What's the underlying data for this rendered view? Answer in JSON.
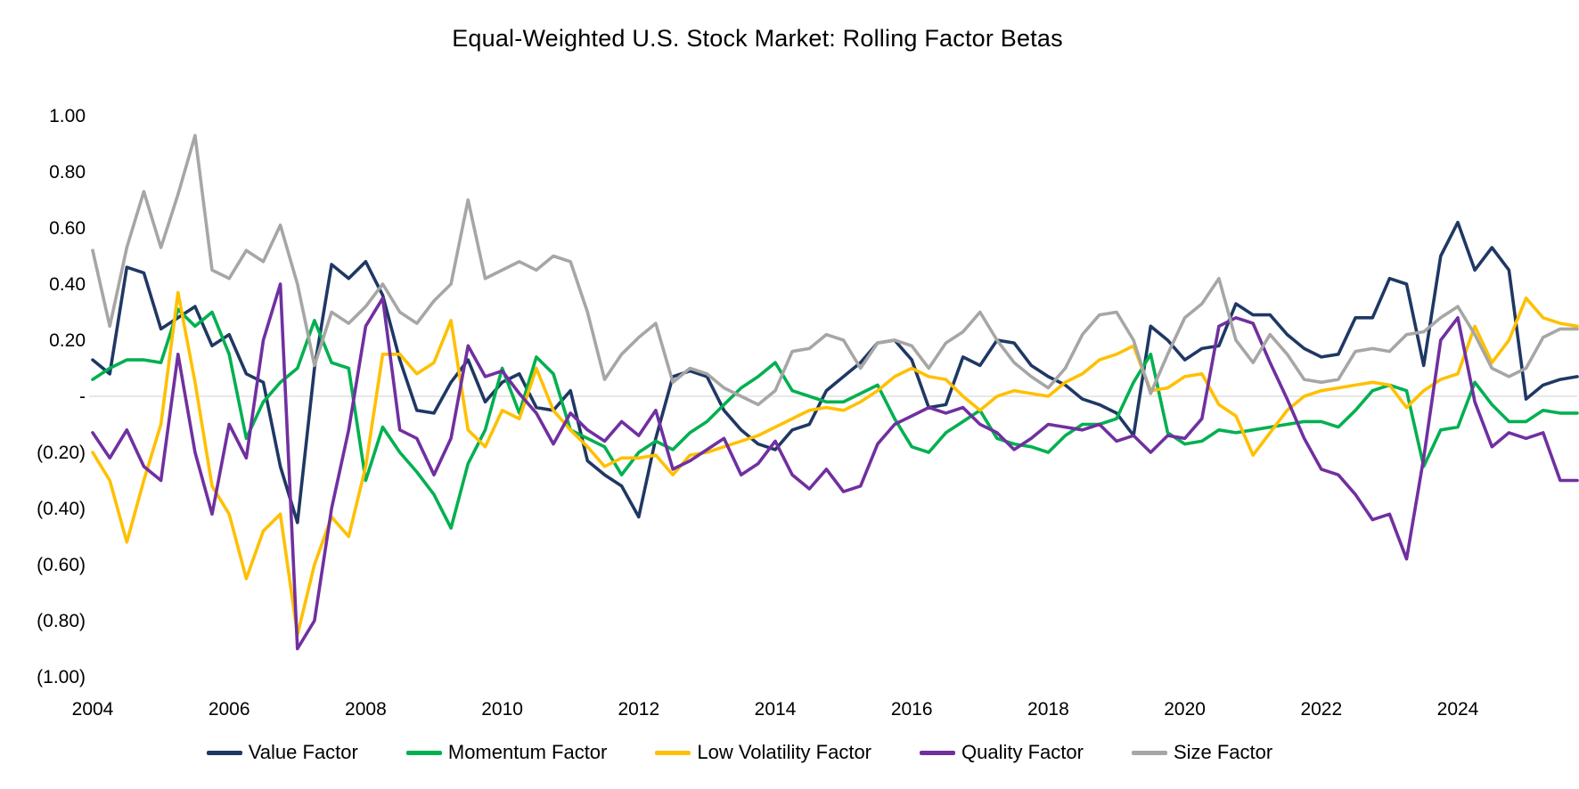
{
  "chart_data": {
    "type": "line",
    "title": "Equal-Weighted U.S. Stock Market: Rolling Factor Betas",
    "xlabel": "",
    "ylabel": "",
    "ylim": [
      -1.0,
      1.0
    ],
    "grid": "zero-line-only",
    "zero_line_color": "#D9D9D9",
    "legend_position": "bottom",
    "x_start": 2004,
    "x_step": 0.25,
    "x_ticks": [
      {
        "value": 2004,
        "label": "2004"
      },
      {
        "value": 2006,
        "label": "2006"
      },
      {
        "value": 2008,
        "label": "2008"
      },
      {
        "value": 2010,
        "label": "2010"
      },
      {
        "value": 2012,
        "label": "2012"
      },
      {
        "value": 2014,
        "label": "2014"
      },
      {
        "value": 2016,
        "label": "2016"
      },
      {
        "value": 2018,
        "label": "2018"
      },
      {
        "value": 2020,
        "label": "2020"
      },
      {
        "value": 2022,
        "label": "2022"
      },
      {
        "value": 2024,
        "label": "2024"
      }
    ],
    "y_ticks": [
      {
        "value": 1.0,
        "label": "1.00"
      },
      {
        "value": 0.8,
        "label": "0.80"
      },
      {
        "value": 0.6,
        "label": "0.60"
      },
      {
        "value": 0.4,
        "label": "0.40"
      },
      {
        "value": 0.2,
        "label": "0.20"
      },
      {
        "value": 0.0,
        "label": "-"
      },
      {
        "value": -0.2,
        "label": "(0.20)"
      },
      {
        "value": -0.4,
        "label": "(0.40)"
      },
      {
        "value": -0.6,
        "label": "(0.60)"
      },
      {
        "value": -0.8,
        "label": "(0.80)"
      },
      {
        "value": -1.0,
        "label": "(1.00)"
      }
    ],
    "series": [
      {
        "name": "Value Factor",
        "color": "#1F3864",
        "values": [
          0.13,
          0.08,
          0.46,
          0.44,
          0.24,
          0.28,
          0.32,
          0.18,
          0.22,
          0.08,
          0.05,
          -0.25,
          -0.45,
          0.1,
          0.47,
          0.42,
          0.48,
          0.36,
          0.13,
          -0.05,
          -0.06,
          0.05,
          0.13,
          -0.02,
          0.05,
          0.08,
          -0.04,
          -0.05,
          0.02,
          -0.23,
          -0.28,
          -0.32,
          -0.43,
          -0.15,
          0.07,
          0.09,
          0.07,
          -0.05,
          -0.12,
          -0.17,
          -0.19,
          -0.12,
          -0.1,
          0.02,
          0.07,
          0.12,
          0.19,
          0.2,
          0.13,
          -0.04,
          -0.03,
          0.14,
          0.11,
          0.2,
          0.19,
          0.11,
          0.07,
          0.04,
          -0.01,
          -0.03,
          -0.06,
          -0.14,
          0.25,
          0.2,
          0.13,
          0.17,
          0.18,
          0.33,
          0.29,
          0.29,
          0.22,
          0.17,
          0.14,
          0.15,
          0.28,
          0.28,
          0.42,
          0.4,
          0.11,
          0.5,
          0.62,
          0.45,
          0.53,
          0.45,
          -0.01,
          0.04,
          0.06,
          0.07
        ]
      },
      {
        "name": "Momentum Factor",
        "color": "#00B050",
        "values": [
          0.06,
          0.1,
          0.13,
          0.13,
          0.12,
          0.31,
          0.25,
          0.3,
          0.15,
          -0.15,
          -0.02,
          0.05,
          0.1,
          0.27,
          0.12,
          0.1,
          -0.3,
          -0.11,
          -0.2,
          -0.27,
          -0.35,
          -0.47,
          -0.24,
          -0.12,
          0.1,
          -0.06,
          0.14,
          0.08,
          -0.12,
          -0.15,
          -0.18,
          -0.28,
          -0.2,
          -0.16,
          -0.19,
          -0.13,
          -0.09,
          -0.03,
          0.03,
          0.07,
          0.12,
          0.02,
          0.0,
          -0.02,
          -0.02,
          0.01,
          0.04,
          -0.08,
          -0.18,
          -0.2,
          -0.13,
          -0.09,
          -0.05,
          -0.15,
          -0.17,
          -0.18,
          -0.2,
          -0.14,
          -0.1,
          -0.1,
          -0.08,
          0.05,
          0.15,
          -0.13,
          -0.17,
          -0.16,
          -0.12,
          -0.13,
          -0.12,
          -0.11,
          -0.1,
          -0.09,
          -0.09,
          -0.11,
          -0.05,
          0.02,
          0.04,
          0.02,
          -0.25,
          -0.12,
          -0.11,
          0.05,
          -0.03,
          -0.09,
          -0.09,
          -0.05,
          -0.06,
          -0.06
        ]
      },
      {
        "name": "Low Volatility Factor",
        "color": "#FFC000",
        "values": [
          -0.2,
          -0.3,
          -0.52,
          -0.3,
          -0.1,
          0.37,
          0.05,
          -0.32,
          -0.42,
          -0.65,
          -0.48,
          -0.42,
          -0.85,
          -0.6,
          -0.43,
          -0.5,
          -0.25,
          0.15,
          0.15,
          0.08,
          0.12,
          0.27,
          -0.12,
          -0.18,
          -0.05,
          -0.08,
          0.1,
          -0.05,
          -0.12,
          -0.18,
          -0.25,
          -0.22,
          -0.22,
          -0.21,
          -0.28,
          -0.21,
          -0.2,
          -0.18,
          -0.16,
          -0.14,
          -0.11,
          -0.08,
          -0.05,
          -0.04,
          -0.05,
          -0.02,
          0.02,
          0.07,
          0.1,
          0.07,
          0.06,
          0.0,
          -0.05,
          0.0,
          0.02,
          0.01,
          0.0,
          0.05,
          0.08,
          0.13,
          0.15,
          0.18,
          0.02,
          0.03,
          0.07,
          0.08,
          -0.03,
          -0.07,
          -0.21,
          -0.13,
          -0.05,
          0.0,
          0.02,
          0.03,
          0.04,
          0.05,
          0.04,
          -0.04,
          0.02,
          0.06,
          0.08,
          0.25,
          0.12,
          0.2,
          0.35,
          0.28,
          0.26,
          0.25
        ]
      },
      {
        "name": "Quality Factor",
        "color": "#7030A0",
        "values": [
          -0.13,
          -0.22,
          -0.12,
          -0.25,
          -0.3,
          0.15,
          -0.2,
          -0.42,
          -0.1,
          -0.22,
          0.2,
          0.4,
          -0.9,
          -0.8,
          -0.4,
          -0.12,
          0.25,
          0.35,
          -0.12,
          -0.15,
          -0.28,
          -0.15,
          0.18,
          0.07,
          0.09,
          0.01,
          -0.06,
          -0.17,
          -0.06,
          -0.12,
          -0.16,
          -0.09,
          -0.14,
          -0.05,
          -0.26,
          -0.23,
          -0.19,
          -0.15,
          -0.28,
          -0.24,
          -0.16,
          -0.28,
          -0.33,
          -0.26,
          -0.34,
          -0.32,
          -0.17,
          -0.1,
          -0.07,
          -0.04,
          -0.06,
          -0.04,
          -0.1,
          -0.13,
          -0.19,
          -0.15,
          -0.1,
          -0.11,
          -0.12,
          -0.1,
          -0.16,
          -0.14,
          -0.2,
          -0.14,
          -0.15,
          -0.08,
          0.25,
          0.28,
          0.26,
          0.12,
          -0.01,
          -0.15,
          -0.26,
          -0.28,
          -0.35,
          -0.44,
          -0.42,
          -0.58,
          -0.22,
          0.2,
          0.28,
          -0.02,
          -0.18,
          -0.13,
          -0.15,
          -0.13,
          -0.3,
          -0.3
        ]
      },
      {
        "name": "Size Factor",
        "color": "#A6A6A6",
        "values": [
          0.52,
          0.25,
          0.53,
          0.73,
          0.53,
          0.72,
          0.93,
          0.45,
          0.42,
          0.52,
          0.48,
          0.61,
          0.4,
          0.11,
          0.3,
          0.26,
          0.32,
          0.4,
          0.3,
          0.26,
          0.34,
          0.4,
          0.7,
          0.42,
          0.45,
          0.48,
          0.45,
          0.5,
          0.48,
          0.3,
          0.06,
          0.15,
          0.21,
          0.26,
          0.05,
          0.1,
          0.08,
          0.03,
          0.0,
          -0.03,
          0.02,
          0.16,
          0.17,
          0.22,
          0.2,
          0.1,
          0.19,
          0.2,
          0.18,
          0.1,
          0.19,
          0.23,
          0.3,
          0.2,
          0.12,
          0.07,
          0.03,
          0.1,
          0.22,
          0.29,
          0.3,
          0.2,
          0.01,
          0.15,
          0.28,
          0.33,
          0.42,
          0.2,
          0.12,
          0.22,
          0.15,
          0.06,
          0.05,
          0.06,
          0.16,
          0.17,
          0.16,
          0.22,
          0.23,
          0.28,
          0.32,
          0.22,
          0.1,
          0.07,
          0.1,
          0.21,
          0.24,
          0.24
        ]
      }
    ]
  }
}
